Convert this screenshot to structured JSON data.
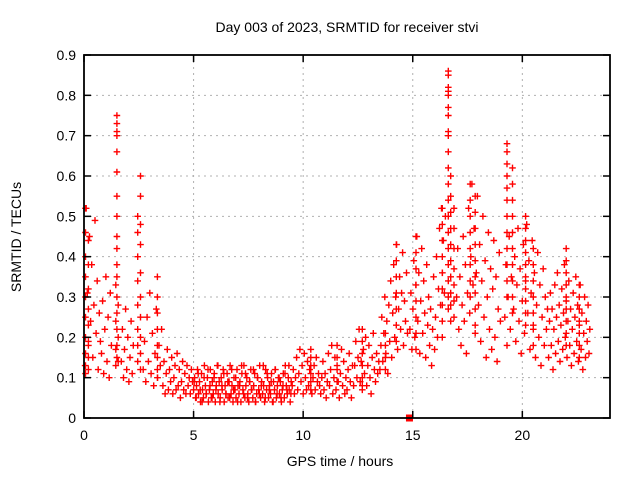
{
  "chart_data": {
    "type": "scatter",
    "title": "Day 003 of 2023, SRMTID for receiver stvi",
    "xlabel": "GPS time / hours",
    "ylabel": "SRMTID / TECUs",
    "xlim": [
      0,
      24
    ],
    "ylim": [
      0,
      0.9
    ],
    "x_ticks": [
      0,
      5,
      10,
      15,
      20
    ],
    "x_tick_labels": [
      "0",
      "5",
      "10",
      "15",
      "20"
    ],
    "y_ticks": [
      0,
      0.1,
      0.2,
      0.3,
      0.4,
      0.5,
      0.6,
      0.7,
      0.8,
      0.9
    ],
    "y_tick_labels": [
      "0",
      "0.1",
      "0.2",
      "0.3",
      "0.4",
      "0.5",
      "0.6",
      "0.7",
      "0.8",
      "0.9"
    ],
    "grid": true,
    "legend": null,
    "marker": "plus",
    "colors": {
      "marker": "#ff0000",
      "grid": "#b0b0b0",
      "axis": "#000000",
      "background": "#ffffff"
    },
    "special_points": [
      {
        "x": 14.85,
        "y": 0,
        "marker": "filled-square"
      }
    ],
    "series": [
      {
        "name": "SRMTID",
        "segments": [
          {
            "x0": 0.05,
            "dx": 0.05,
            "ys": [
              0.13,
              0.52,
              0.31,
              0.18,
              0.45,
              0.24,
              0.38,
              0.15,
              0.28,
              0.49,
              0.21,
              0.34,
              0.12,
              0.26,
              0.19
            ]
          },
          {
            "x0": 0.8,
            "dx": 0.05,
            "ys": [
              0.16,
              0.29,
              0.11,
              0.22,
              0.35,
              0.14,
              0.25,
              0.1,
              0.31,
              0.18
            ]
          },
          {
            "x0": 1.7,
            "dx": 0.05,
            "ys": [
              0.14,
              0.22,
              0.1,
              0.17,
              0.27,
              0.12,
              0.2,
              0.09,
              0.15,
              0.24,
              0.11,
              0.18
            ]
          },
          {
            "x0": 2.7,
            "dx": 0.06,
            "ys": [
              0.12,
              0.19,
              0.09,
              0.25,
              0.14,
              0.31,
              0.11,
              0.21,
              0.08,
              0.16,
              0.27,
              0.1,
              0.18,
              0.13,
              0.22
            ]
          },
          {
            "x0": 3.6,
            "dx": 0.05,
            "ys": [
              0.08,
              0.14,
              0.06,
              0.11,
              0.17,
              0.07,
              0.12,
              0.09,
              0.15,
              0.06,
              0.1,
              0.13,
              0.07,
              0.16,
              0.08,
              0.12,
              0.05,
              0.09,
              0.14,
              0.07,
              0.11,
              0.06,
              0.13,
              0.08,
              0.1,
              0.06,
              0.12,
              0.09
            ]
          },
          {
            "x0": 5.0,
            "dx": 0.045,
            "ys": [
              0.07,
              0.1,
              0.05,
              0.08,
              0.12,
              0.06,
              0.09,
              0.04,
              0.11,
              0.07,
              0.05,
              0.13,
              0.08,
              0.06,
              0.1,
              0.04,
              0.07,
              0.12,
              0.05,
              0.09,
              0.06,
              0.11,
              0.04,
              0.08,
              0.13,
              0.06,
              0.09,
              0.05,
              0.1,
              0.07,
              0.12,
              0.04,
              0.08,
              0.06,
              0.11,
              0.05,
              0.09,
              0.13,
              0.06,
              0.08,
              0.04,
              0.1,
              0.07,
              0.05,
              0.12,
              0.08,
              0.06,
              0.09,
              0.04,
              0.11,
              0.07,
              0.13,
              0.05,
              0.08,
              0.1,
              0.06,
              0.04,
              0.09,
              0.12,
              0.07,
              0.05,
              0.08,
              0.11,
              0.04,
              0.06,
              0.1,
              0.07,
              0.13,
              0.05,
              0.09,
              0.06,
              0.08,
              0.04,
              0.12,
              0.07,
              0.1,
              0.05,
              0.08,
              0.06,
              0.11,
              0.04,
              0.09,
              0.07,
              0.12,
              0.05,
              0.08,
              0.1,
              0.06,
              0.09,
              0.04,
              0.07,
              0.11,
              0.05,
              0.13,
              0.08,
              0.06,
              0.1,
              0.07,
              0.04,
              0.09
            ]
          },
          {
            "x0": 5.03,
            "dx": 0.09,
            "ys": [
              0.09,
              0.05,
              0.11,
              0.07,
              0.04,
              0.1,
              0.06,
              0.12,
              0.08,
              0.05,
              0.1,
              0.07,
              0.13,
              0.04,
              0.08,
              0.11,
              0.06,
              0.09,
              0.05,
              0.12,
              0.07,
              0.1,
              0.04,
              0.08,
              0.13,
              0.06,
              0.11,
              0.05,
              0.09,
              0.07,
              0.12,
              0.04,
              0.1,
              0.06,
              0.08,
              0.13,
              0.05,
              0.11,
              0.07,
              0.09,
              0.04,
              0.12,
              0.06,
              0.1,
              0.05,
              0.08,
              0.11,
              0.07,
              0.13,
              0.06
            ]
          },
          {
            "x0": 9.5,
            "dx": 0.05,
            "ys": [
              0.08,
              0.12,
              0.06,
              0.1,
              0.15,
              0.07,
              0.11,
              0.17,
              0.09,
              0.13,
              0.06,
              0.16,
              0.1,
              0.07,
              0.14,
              0.08,
              0.12,
              0.17,
              0.06,
              0.1,
              0.13,
              0.07,
              0.15,
              0.09,
              0.11,
              0.08
            ]
          },
          {
            "x0": 10.8,
            "dx": 0.05,
            "ys": [
              0.06,
              0.1,
              0.14,
              0.07,
              0.11,
              0.05,
              0.09,
              0.16,
              0.08,
              0.12,
              0.18,
              0.06,
              0.1,
              0.15,
              0.07,
              0.13,
              0.09,
              0.05,
              0.11,
              0.17,
              0.08,
              0.14,
              0.06,
              0.1,
              0.07,
              0.12,
              0.16,
              0.09,
              0.05,
              0.13
            ]
          },
          {
            "x0": 12.3,
            "dx": 0.05,
            "ys": [
              0.08,
              0.13,
              0.19,
              0.1,
              0.15,
              0.22,
              0.09,
              0.14,
              0.07,
              0.17,
              0.11,
              0.2,
              0.08,
              0.13,
              0.18,
              0.1,
              0.06,
              0.15,
              0.21,
              0.12,
              0.09,
              0.16,
              0.11,
              0.14
            ]
          },
          {
            "x0": 13.5,
            "dx": 0.045,
            "ys": [
              0.12,
              0.18,
              0.25,
              0.14,
              0.21,
              0.3,
              0.16,
              0.24,
              0.11,
              0.28,
              0.19,
              0.34,
              0.15,
              0.26,
              0.38,
              0.2,
              0.3,
              0.43,
              0.17,
              0.27,
              0.35,
              0.22,
              0.31,
              0.41,
              0.18,
              0.29,
              0.24,
              0.36,
              0.21
            ]
          },
          {
            "x0": 14.87,
            "dx": 0.045,
            "ys": [
              0.22,
              0.31,
              0.17,
              0.27,
              0.39,
              0.2,
              0.33,
              0.45,
              0.24,
              0.36,
              0.16,
              0.29,
              0.42,
              0.21,
              0.34,
              0.26,
              0.15,
              0.38,
              0.23,
              0.3,
              0.18,
              0.27,
              0.13,
              0.22,
              0.35,
              0.17,
              0.25,
              0.4,
              0.2,
              0.32,
              0.47,
              0.28,
              0.52,
              0.36,
              0.44,
              0.31,
              0.5
            ]
          },
          {
            "x0": 17.0,
            "dx": 0.05,
            "ys": [
              0.3,
              0.42,
              0.22,
              0.35,
              0.18,
              0.28,
              0.45,
              0.24,
              0.38,
              0.16,
              0.31,
              0.52,
              0.26,
              0.4,
              0.58,
              0.33,
              0.47,
              0.21,
              0.36,
              0.55,
              0.28,
              0.43,
              0.19,
              0.34,
              0.5,
              0.25,
              0.39,
              0.15,
              0.3,
              0.46,
              0.22,
              0.37,
              0.17,
              0.32,
              0.44,
              0.2,
              0.35,
              0.14,
              0.27,
              0.41,
              0.24
            ]
          },
          {
            "x0": 19.2,
            "dx": 0.05,
            "ys": [
              0.25,
              0.38,
              0.18,
              0.3,
              0.45,
              0.22,
              0.35,
              0.5,
              0.27,
              0.4,
              0.19,
              0.33,
              0.47,
              0.24,
              0.37,
              0.16,
              0.29,
              0.43,
              0.21,
              0.34,
              0.48,
              0.26,
              0.39,
              0.17,
              0.31,
              0.44,
              0.23,
              0.36,
              0.15,
              0.28,
              0.41,
              0.2,
              0.33,
              0.13,
              0.25,
              0.37,
              0.18,
              0.3,
              0.22,
              0.27
            ]
          },
          {
            "x0": 21.2,
            "dx": 0.04,
            "ys": [
              0.15,
              0.24,
              0.31,
              0.18,
              0.27,
              0.12,
              0.22,
              0.33,
              0.16,
              0.25,
              0.36,
              0.19,
              0.28,
              0.14,
              0.23,
              0.32,
              0.17,
              0.26,
              0.38,
              0.2,
              0.29,
              0.15,
              0.24,
              0.34,
              0.18,
              0.27,
              0.13,
              0.22,
              0.31,
              0.16,
              0.25,
              0.35,
              0.19,
              0.28,
              0.14,
              0.23,
              0.33,
              0.17,
              0.26,
              0.12,
              0.21,
              0.3,
              0.15,
              0.24,
              0.19,
              0.28,
              0.16,
              0.22
            ]
          }
        ],
        "columns": [
          {
            "x": 0.07,
            "ys": [
              0.52,
              0.46,
              0.4,
              0.35,
              0.3,
              0.25,
              0.2,
              0.16,
              0.13,
              0.11
            ]
          },
          {
            "x": 0.2,
            "ys": [
              0.44,
              0.38,
              0.32,
              0.27,
              0.23,
              0.19,
              0.15,
              0.12
            ]
          },
          {
            "x": 1.45,
            "ys": [
              0.33,
              0.24,
              0.17,
              0.13
            ]
          },
          {
            "x": 1.5,
            "ys": [
              0.75,
              0.73,
              0.71,
              0.71,
              0.7,
              0.66,
              0.61,
              0.55,
              0.5,
              0.45,
              0.42,
              0.38,
              0.35,
              0.3,
              0.26,
              0.22,
              0.18,
              0.15
            ]
          },
          {
            "x": 1.56,
            "ys": [
              0.28,
              0.2,
              0.14
            ]
          },
          {
            "x": 2.45,
            "ys": [
              0.5,
              0.5,
              0.46,
              0.4,
              0.34,
              0.28,
              0.22,
              0.18,
              0.14
            ]
          },
          {
            "x": 2.58,
            "ys": [
              0.6,
              0.55,
              0.48,
              0.43,
              0.36,
              0.3,
              0.25,
              0.2,
              0.16,
              0.12
            ]
          },
          {
            "x": 3.35,
            "ys": [
              0.35,
              0.3,
              0.26,
              0.22,
              0.18,
              0.15,
              0.12,
              0.1
            ]
          },
          {
            "x": 10.35,
            "ys": [
              0.17,
              0.15,
              0.13,
              0.11,
              0.09,
              0.07
            ]
          },
          {
            "x": 11.55,
            "ys": [
              0.18,
              0.15,
              0.12,
              0.09
            ]
          },
          {
            "x": 12.7,
            "ys": [
              0.22,
              0.19,
              0.16,
              0.13,
              0.1,
              0.08
            ]
          },
          {
            "x": 13.75,
            "ys": [
              0.21,
              0.18,
              0.15,
              0.12
            ]
          },
          {
            "x": 14.25,
            "ys": [
              0.43,
              0.39,
              0.35,
              0.31,
              0.27,
              0.23,
              0.19
            ]
          },
          {
            "x": 15.15,
            "ys": [
              0.45,
              0.41,
              0.37,
              0.33,
              0.29,
              0.25,
              0.21,
              0.17
            ]
          },
          {
            "x": 16.35,
            "ys": [
              0.52,
              0.48,
              0.44,
              0.4,
              0.36,
              0.32,
              0.28,
              0.24,
              0.2
            ]
          },
          {
            "x": 16.62,
            "ys": [
              0.86,
              0.85,
              0.82,
              0.81,
              0.8,
              0.77,
              0.75,
              0.71,
              0.7,
              0.66,
              0.62,
              0.58,
              0.54,
              0.5,
              0.46,
              0.42,
              0.38,
              0.34,
              0.3,
              0.27
            ]
          },
          {
            "x": 16.73,
            "ys": [
              0.6,
              0.55,
              0.51,
              0.47,
              0.43,
              0.39,
              0.35,
              0.31,
              0.28,
              0.24
            ]
          },
          {
            "x": 16.88,
            "ys": [
              0.52,
              0.47,
              0.42,
              0.37,
              0.33,
              0.29,
              0.25
            ]
          },
          {
            "x": 17.62,
            "ys": [
              0.58,
              0.54,
              0.5,
              0.46,
              0.42,
              0.38,
              0.34,
              0.3
            ]
          },
          {
            "x": 17.85,
            "ys": [
              0.55,
              0.51,
              0.47,
              0.43,
              0.39,
              0.35,
              0.31,
              0.27,
              0.23
            ]
          },
          {
            "x": 19.3,
            "ys": [
              0.68,
              0.66,
              0.63,
              0.6,
              0.57,
              0.54,
              0.5,
              0.46,
              0.42,
              0.38,
              0.34,
              0.3
            ]
          },
          {
            "x": 19.55,
            "ys": [
              0.62,
              0.58,
              0.54,
              0.5,
              0.46,
              0.42,
              0.38,
              0.34,
              0.3,
              0.26
            ]
          },
          {
            "x": 20.15,
            "ys": [
              0.5,
              0.47,
              0.44,
              0.41,
              0.38,
              0.35,
              0.32,
              0.29,
              0.26,
              0.23
            ]
          },
          {
            "x": 20.5,
            "ys": [
              0.42,
              0.38,
              0.34,
              0.3,
              0.26,
              0.22,
              0.18
            ]
          },
          {
            "x": 22.0,
            "ys": [
              0.42,
              0.39,
              0.36,
              0.33,
              0.3,
              0.27,
              0.24,
              0.21,
              0.18
            ]
          },
          {
            "x": 22.6,
            "ys": [
              0.33,
              0.3,
              0.27,
              0.24,
              0.21,
              0.18,
              0.15
            ]
          }
        ]
      }
    ]
  }
}
